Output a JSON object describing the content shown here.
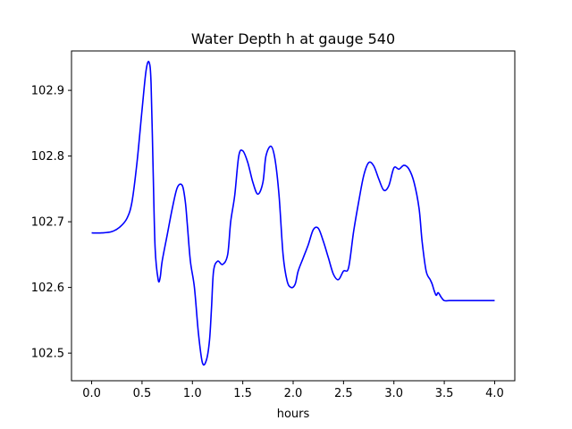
{
  "chart_data": {
    "type": "line",
    "title": "Water Depth h at gauge 540",
    "xlabel": "hours",
    "ylabel": "",
    "xlim": [
      -0.2,
      4.2
    ],
    "ylim": [
      102.458,
      102.96
    ],
    "xticks": [
      0.0,
      0.5,
      1.0,
      1.5,
      2.0,
      2.5,
      3.0,
      3.5,
      4.0
    ],
    "xtick_labels": [
      "0.0",
      "0.5",
      "1.0",
      "1.5",
      "2.0",
      "2.5",
      "3.0",
      "3.5",
      "4.0"
    ],
    "yticks": [
      102.5,
      102.6,
      102.7,
      102.8,
      102.9
    ],
    "ytick_labels": [
      "102.5",
      "102.6",
      "102.7",
      "102.8",
      "102.9"
    ],
    "grid": false,
    "series": [
      {
        "color": "#0000ff",
        "x": [
          0.0,
          0.1,
          0.2,
          0.28,
          0.35,
          0.4,
          0.45,
          0.5,
          0.54,
          0.57,
          0.59,
          0.61,
          0.63,
          0.66,
          0.68,
          0.7,
          0.75,
          0.8,
          0.85,
          0.9,
          0.93,
          0.95,
          0.98,
          1.02,
          1.06,
          1.1,
          1.14,
          1.17,
          1.19,
          1.21,
          1.25,
          1.3,
          1.35,
          1.38,
          1.42,
          1.46,
          1.5,
          1.55,
          1.6,
          1.65,
          1.7,
          1.73,
          1.78,
          1.82,
          1.86,
          1.9,
          1.94,
          1.98,
          2.02,
          2.05,
          2.1,
          2.15,
          2.2,
          2.25,
          2.3,
          2.35,
          2.4,
          2.45,
          2.5,
          2.55,
          2.6,
          2.65,
          2.7,
          2.75,
          2.8,
          2.85,
          2.9,
          2.95,
          3.0,
          3.05,
          3.1,
          3.15,
          3.2,
          3.25,
          3.28,
          3.32,
          3.36,
          3.38,
          3.4,
          3.42,
          3.44,
          3.47,
          3.5,
          3.55,
          3.6,
          3.65,
          3.7,
          3.75,
          3.8,
          3.85,
          3.88,
          3.9,
          3.92,
          3.95,
          3.97,
          4.0
        ],
        "y": [
          102.683,
          102.683,
          102.685,
          102.692,
          102.705,
          102.73,
          102.79,
          102.87,
          102.93,
          102.943,
          102.91,
          102.78,
          102.66,
          102.612,
          102.615,
          102.64,
          102.68,
          102.72,
          102.752,
          102.755,
          102.73,
          102.695,
          102.64,
          102.6,
          102.53,
          102.485,
          102.49,
          102.52,
          102.57,
          102.625,
          102.64,
          102.635,
          102.65,
          102.7,
          102.74,
          102.8,
          102.808,
          102.79,
          102.76,
          102.742,
          102.76,
          102.8,
          102.815,
          102.795,
          102.74,
          102.65,
          102.61,
          102.6,
          102.605,
          102.625,
          102.645,
          102.665,
          102.688,
          102.69,
          102.67,
          102.645,
          102.62,
          102.612,
          102.625,
          102.63,
          102.685,
          102.73,
          102.77,
          102.79,
          102.785,
          102.765,
          102.748,
          102.755,
          102.782,
          102.78,
          102.786,
          102.78,
          102.76,
          102.72,
          102.67,
          102.625,
          102.612,
          102.605,
          102.595,
          102.588,
          102.592,
          102.585,
          102.58,
          102.58,
          102.58,
          102.58,
          102.58,
          102.58,
          102.58,
          102.58,
          102.58,
          102.58,
          102.58,
          102.58,
          102.58,
          102.58
        ]
      }
    ]
  }
}
